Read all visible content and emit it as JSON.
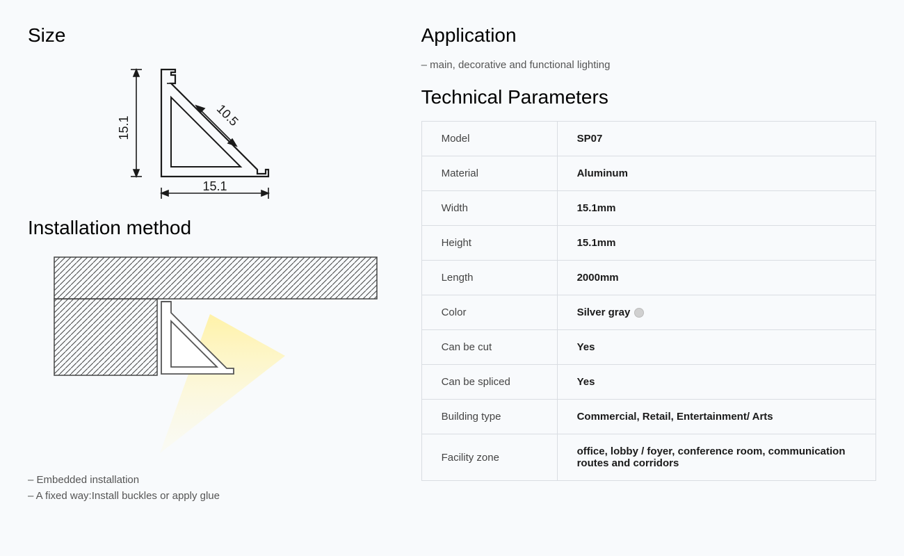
{
  "headings": {
    "size": "Size",
    "installation": "Installation method",
    "application": "Application",
    "technical": "Technical Parameters"
  },
  "size_diagram": {
    "dim_vertical": "15.1",
    "dim_horizontal": "15.1",
    "dim_diagonal": "10.5",
    "stroke": "#1a1a1a",
    "stroke_width": 1.6,
    "font_size": 18
  },
  "install_diagram": {
    "hatch_stroke": "#444",
    "profile_stroke": "#555",
    "light_color_inner": "#fff2a8",
    "light_color_outer": "#fef9d8"
  },
  "install_notes": [
    "– Embedded installation",
    "– A fixed way:Install buckles or apply glue"
  ],
  "application_note": "– main, decorative and functional lighting",
  "spec_rows": [
    {
      "label": "Model",
      "value": "SP07"
    },
    {
      "label": "Material",
      "value": "Aluminum"
    },
    {
      "label": "Width",
      "value": "15.1mm"
    },
    {
      "label": "Height",
      "value": "15.1mm"
    },
    {
      "label": "Length",
      "value": "2000mm"
    },
    {
      "label": "Color",
      "value": "Silver gray",
      "swatch": "#d0d0d0"
    },
    {
      "label": "Can be cut",
      "value": "Yes"
    },
    {
      "label": "Can be spliced",
      "value": "Yes"
    },
    {
      "label": "Building type",
      "value": "Commercial, Retail, Entertainment/ Arts"
    },
    {
      "label": "Facility zone",
      "value": "office, lobby / foyer, conference room, communication routes and corridors"
    }
  ],
  "colors": {
    "background": "#f8fafc",
    "border": "#d9dde2",
    "text": "#1a1a1a",
    "muted": "#555"
  }
}
